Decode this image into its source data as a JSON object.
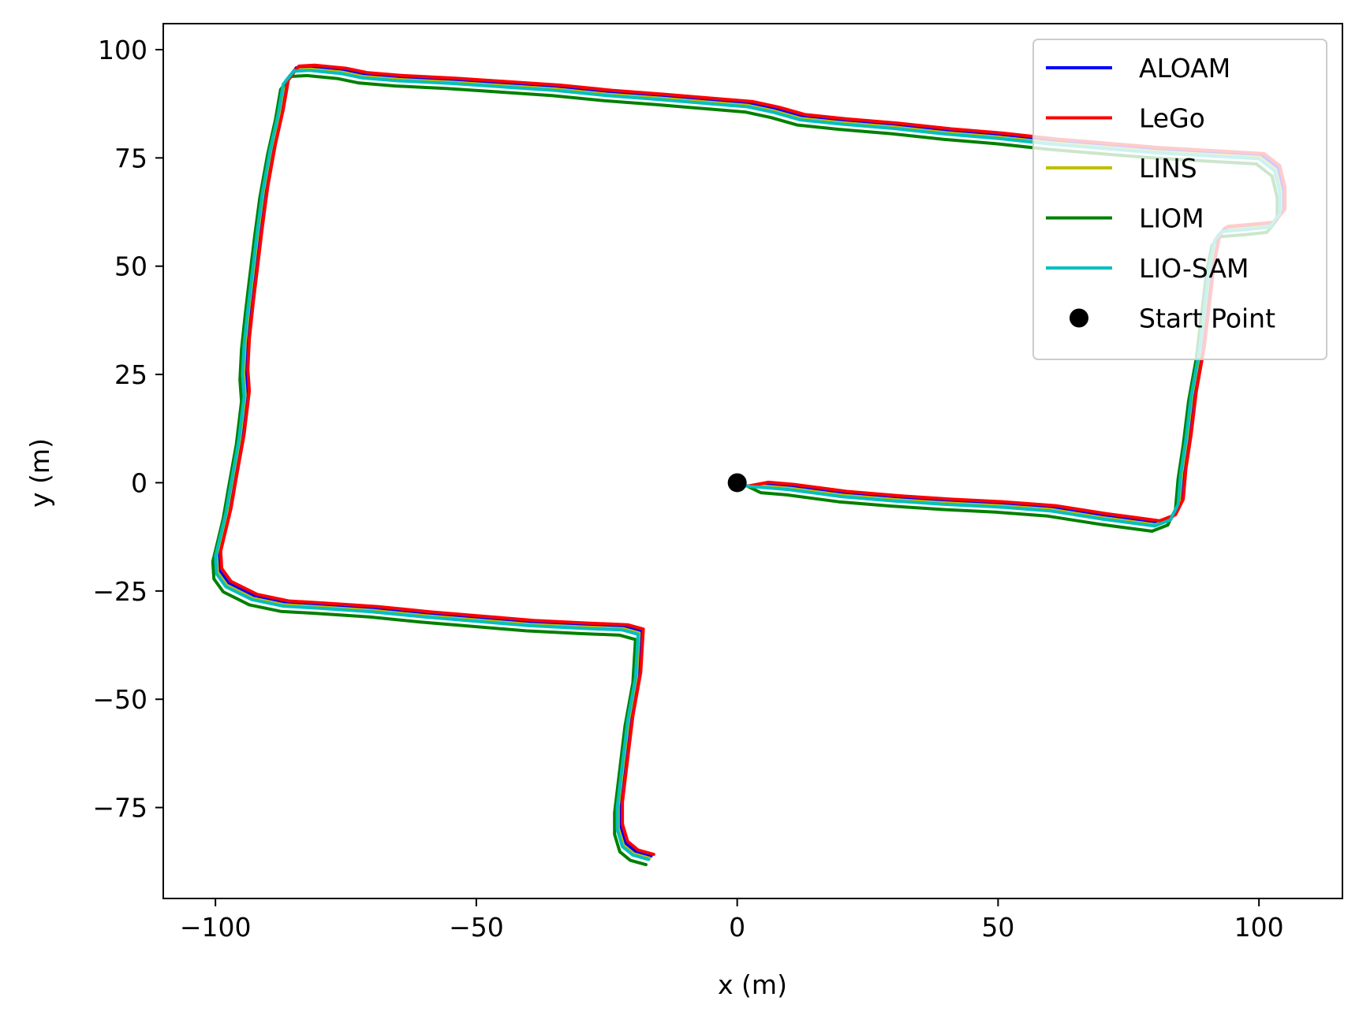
{
  "chart_data": {
    "type": "line",
    "title": "",
    "xlabel": "x (m)",
    "ylabel": "y (m)",
    "xlim": [
      -110,
      116
    ],
    "ylim": [
      -96,
      106
    ],
    "x_ticks": [
      -100,
      -50,
      0,
      50,
      100
    ],
    "y_ticks": [
      -75,
      -50,
      -25,
      0,
      25,
      50,
      75,
      100
    ],
    "x_tick_labels": [
      "−100",
      "−50",
      "0",
      "50",
      "100"
    ],
    "y_tick_labels": [
      "−75",
      "−50",
      "−25",
      "0",
      "25",
      "50",
      "75",
      "100"
    ],
    "grid": false,
    "legend_position": "top-right",
    "reference_path": [
      [
        0,
        0
      ],
      [
        2,
        -0.8
      ],
      [
        5,
        -1.1
      ],
      [
        10,
        -1.6
      ],
      [
        15,
        -2.4
      ],
      [
        20,
        -3.2
      ],
      [
        30,
        -4.2
      ],
      [
        40,
        -5.0
      ],
      [
        50,
        -5.6
      ],
      [
        60,
        -6.5
      ],
      [
        70,
        -8.4
      ],
      [
        75,
        -9.2
      ],
      [
        80,
        -10.0
      ],
      [
        83,
        -8.6
      ],
      [
        84.5,
        -5
      ],
      [
        85,
        2
      ],
      [
        86,
        10
      ],
      [
        87,
        20
      ],
      [
        88.5,
        30
      ],
      [
        89.5,
        40
      ],
      [
        90.5,
        50
      ],
      [
        91.5,
        56
      ],
      [
        93,
        58
      ],
      [
        98,
        58.5
      ],
      [
        102,
        59
      ],
      [
        104,
        62
      ],
      [
        104,
        67
      ],
      [
        103,
        72
      ],
      [
        100,
        74.8
      ],
      [
        90,
        75.5
      ],
      [
        80,
        76.2
      ],
      [
        70,
        77.2
      ],
      [
        60,
        78.2
      ],
      [
        50,
        79.5
      ],
      [
        40,
        80.5
      ],
      [
        30,
        81.8
      ],
      [
        20,
        82.8
      ],
      [
        12,
        83.8
      ],
      [
        7,
        85.5
      ],
      [
        2,
        86.8
      ],
      [
        -5,
        87.5
      ],
      [
        -15,
        88.5
      ],
      [
        -25,
        89.4
      ],
      [
        -35,
        90.6
      ],
      [
        -45,
        91.4
      ],
      [
        -55,
        92.2
      ],
      [
        -65,
        92.8
      ],
      [
        -72,
        93.5
      ],
      [
        -76,
        94.5
      ],
      [
        -82,
        95.2
      ],
      [
        -85,
        95
      ],
      [
        -87,
        92
      ],
      [
        -88,
        85
      ],
      [
        -89.5,
        77
      ],
      [
        -91,
        67
      ],
      [
        -92,
        58
      ],
      [
        -93,
        48
      ],
      [
        -93.8,
        40
      ],
      [
        -94.5,
        32
      ],
      [
        -94.8,
        25
      ],
      [
        -94.5,
        20
      ],
      [
        -95.5,
        10
      ],
      [
        -97,
        0
      ],
      [
        -98,
        -7
      ],
      [
        -99,
        -12
      ],
      [
        -100,
        -17
      ],
      [
        -99.8,
        -21
      ],
      [
        -98,
        -24
      ],
      [
        -93,
        -27
      ],
      [
        -87,
        -28.5
      ],
      [
        -80,
        -29
      ],
      [
        -70,
        -29.8
      ],
      [
        -60,
        -31
      ],
      [
        -50,
        -32
      ],
      [
        -40,
        -33
      ],
      [
        -30,
        -33.6
      ],
      [
        -22,
        -34
      ],
      [
        -19,
        -35
      ],
      [
        -19.5,
        -45
      ],
      [
        -21,
        -55
      ],
      [
        -22,
        -65
      ],
      [
        -23,
        -75
      ],
      [
        -23,
        -80
      ],
      [
        -22,
        -84
      ],
      [
        -20,
        -86
      ],
      [
        -17,
        -87
      ]
    ],
    "series": [
      {
        "name": "ALOAM",
        "color": "#0000ff",
        "offset": [
          0.5,
          0.8
        ]
      },
      {
        "name": "LeGo",
        "color": "#ff0000",
        "offset": [
          1.0,
          1.2
        ]
      },
      {
        "name": "LINS",
        "color": "#bfbf00",
        "offset": [
          0.2,
          0.3
        ]
      },
      {
        "name": "LIOM",
        "color": "#008000",
        "offset": [
          -0.5,
          -1.2
        ]
      },
      {
        "name": "LIO-SAM",
        "color": "#00bfbf",
        "offset": [
          0,
          0
        ]
      }
    ],
    "start_point": {
      "name": "Start Point",
      "x": 0,
      "y": 0,
      "color": "#000000"
    }
  }
}
